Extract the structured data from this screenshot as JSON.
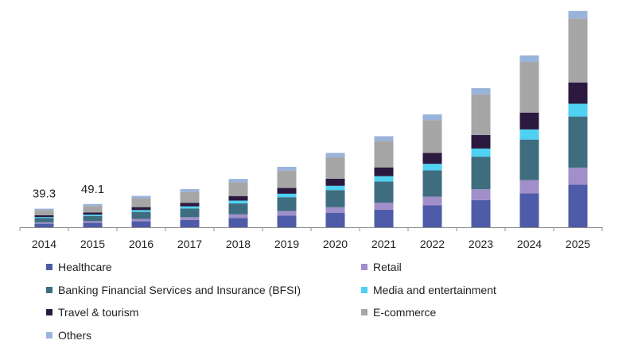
{
  "chart_data": {
    "type": "bar",
    "stacked": true,
    "title": "",
    "xlabel": "",
    "ylabel": "",
    "categories": [
      "2014",
      "2015",
      "2016",
      "2017",
      "2018",
      "2019",
      "2020",
      "2021",
      "2022",
      "2023",
      "2024",
      "2025"
    ],
    "series": [
      {
        "name": "Healthcare",
        "color": "#4e5ba8",
        "values": [
          7.4,
          9.2,
          12.5,
          15.2,
          19.4,
          24.4,
          30.2,
          37.2,
          46.2,
          57.3,
          71.3,
          90.0
        ]
      },
      {
        "name": "Retail",
        "color": "#a08fc9",
        "values": [
          3.0,
          3.7,
          5.0,
          6.1,
          7.8,
          9.8,
          12.1,
          14.9,
          18.5,
          23.0,
          28.5,
          36.0
        ]
      },
      {
        "name": "Banking Financial Services and Insurance (BFSI)",
        "color": "#3f6d80",
        "values": [
          8.9,
          11.0,
          15.0,
          18.2,
          23.3,
          29.3,
          36.2,
          44.6,
          55.4,
          68.8,
          85.5,
          108.0
        ]
      },
      {
        "name": "Media and entertainment",
        "color": "#4fd1f1",
        "values": [
          2.2,
          2.8,
          3.8,
          4.6,
          5.8,
          7.3,
          9.1,
          11.2,
          13.9,
          17.2,
          21.4,
          27.0
        ]
      },
      {
        "name": "Travel & tourism",
        "color": "#2b1940",
        "values": [
          3.7,
          4.6,
          6.3,
          7.6,
          9.7,
          12.2,
          15.1,
          18.6,
          23.1,
          28.7,
          35.6,
          45.0
        ]
      },
      {
        "name": "E-commerce",
        "color": "#a6a6a6",
        "values": [
          11.1,
          13.8,
          18.7,
          22.8,
          29.1,
          36.6,
          45.3,
          55.8,
          69.3,
          86.0,
          106.9,
          135.0
        ]
      },
      {
        "name": "Others",
        "color": "#9ab3db",
        "values": [
          3.0,
          4.0,
          5.0,
          6.0,
          7.0,
          8.0,
          9.0,
          10.0,
          12.0,
          13.0,
          14.0,
          16.0
        ]
      }
    ],
    "totals_labels": [
      {
        "category": "2014",
        "text": "39.3"
      },
      {
        "category": "2015",
        "text": "49.1"
      }
    ],
    "ylim": [
      0,
      460
    ],
    "y_axis_visible": false,
    "grid": false,
    "legend_position": "bottom"
  }
}
